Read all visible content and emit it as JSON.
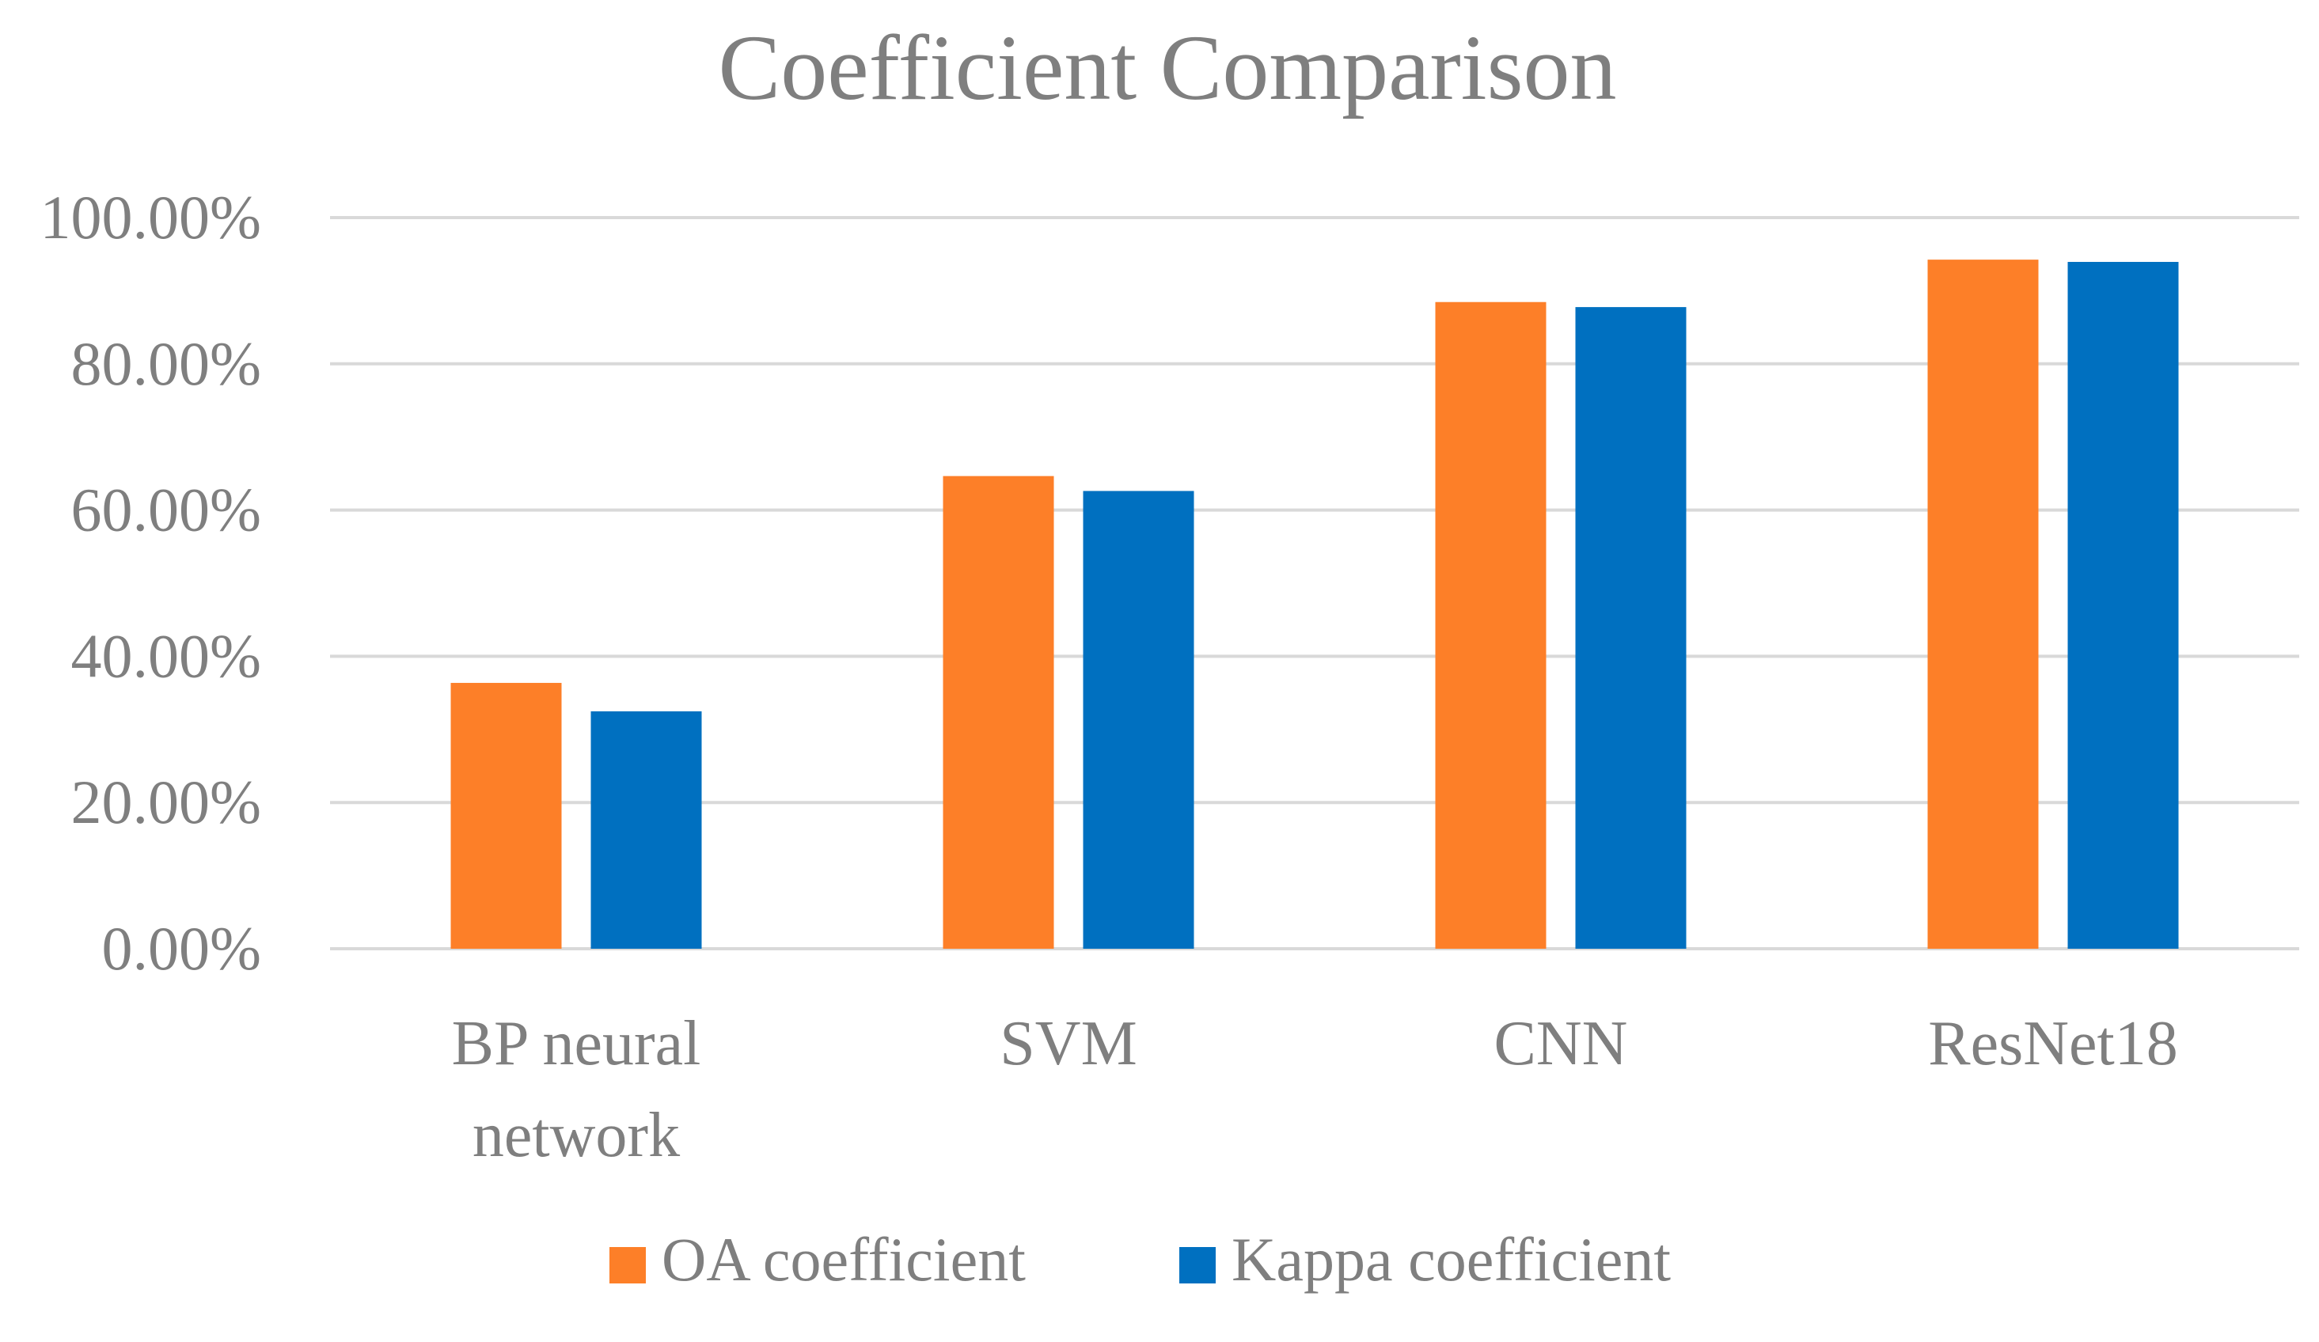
{
  "chart_data": {
    "type": "bar",
    "title": "Coefficient Comparison",
    "xlabel": "",
    "ylabel": "",
    "categories": [
      [
        "BP neural",
        "network"
      ],
      [
        "SVM"
      ],
      [
        "CNN"
      ],
      [
        "ResNet18"
      ]
    ],
    "series": [
      {
        "name": "OA coefficient",
        "color": "#fd7f28",
        "values": [
          0.3636,
          0.6465,
          0.8845,
          0.9425
        ]
      },
      {
        "name": "Kappa coefficient",
        "color": "#0070c0",
        "values": [
          0.3247,
          0.6261,
          0.8776,
          0.9394
        ]
      }
    ],
    "ylim": [
      0,
      1
    ],
    "yticks": [
      0,
      0.2,
      0.4,
      0.6,
      0.8,
      1.0
    ],
    "ytick_labels": [
      "0.00%",
      "20.00%",
      "40.00%",
      "60.00%",
      "80.00%",
      "100.00%"
    ],
    "grid": true,
    "grid_color": "#d9d9d9",
    "text_color": "#7f7f7f",
    "legend_position": "bottom"
  }
}
